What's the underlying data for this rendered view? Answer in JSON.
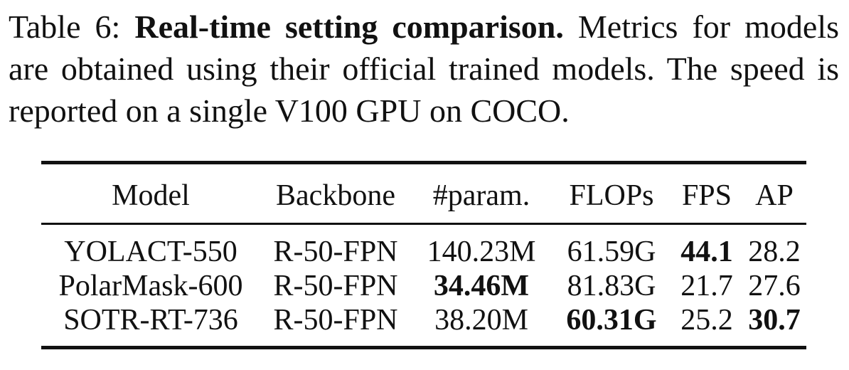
{
  "caption": {
    "label": "Table 6:",
    "bold_title": "Real-time setting comparison.",
    "text": "Metrics for models are obtained using their official trained models. The speed is reported on a single V100 GPU on COCO."
  },
  "table": {
    "headers": [
      "Model",
      "Backbone",
      "#param.",
      "FLOPs",
      "FPS",
      "AP"
    ],
    "rows": [
      {
        "model": "YOLACT-550",
        "backbone": "R-50-FPN",
        "params": "140.23M",
        "flops": "61.59G",
        "fps": "44.1",
        "ap": "28.2",
        "bold": [
          "fps"
        ]
      },
      {
        "model": "PolarMask-600",
        "backbone": "R-50-FPN",
        "params": "34.46M",
        "flops": "81.83G",
        "fps": "21.7",
        "ap": "27.6",
        "bold": [
          "params"
        ]
      },
      {
        "model": "SOTR-RT-736",
        "backbone": "R-50-FPN",
        "params": "38.20M",
        "flops": "60.31G",
        "fps": "25.2",
        "ap": "30.7",
        "bold": [
          "flops",
          "ap"
        ]
      }
    ]
  }
}
